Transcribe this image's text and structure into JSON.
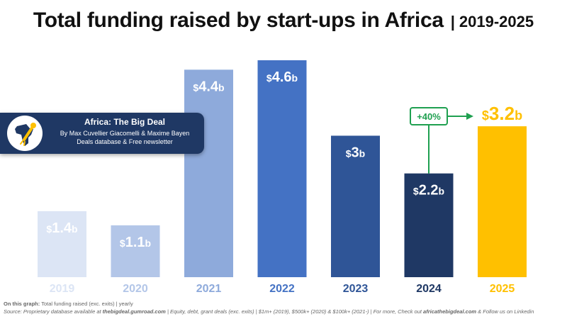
{
  "title": {
    "main": "Total funding raised by start-ups in Africa",
    "separator": "|",
    "period": "2019-2025"
  },
  "chart_data": {
    "type": "bar",
    "title": "Total funding raised by start-ups in Africa | 2019-2025",
    "categories": [
      "2019",
      "2020",
      "2021",
      "2022",
      "2023",
      "2024",
      "2025"
    ],
    "values": [
      1.4,
      1.1,
      4.4,
      4.6,
      3.0,
      2.2,
      3.2
    ],
    "value_labels": [
      {
        "prefix": "$",
        "number": "1.4",
        "suffix": "b"
      },
      {
        "prefix": "$",
        "number": "1.1",
        "suffix": "b"
      },
      {
        "prefix": "$",
        "number": "4.4",
        "suffix": "b"
      },
      {
        "prefix": "$",
        "number": "4.6",
        "suffix": "b"
      },
      {
        "prefix": "$",
        "number": "3",
        "suffix": "b"
      },
      {
        "prefix": "$",
        "number": "2.2",
        "suffix": "b"
      },
      {
        "prefix": "$",
        "number": "3.2",
        "suffix": "b"
      }
    ],
    "bar_colors": [
      "#dce5f5",
      "#b3c6e8",
      "#8eaadb",
      "#4472c4",
      "#2f5597",
      "#1f3864",
      "#ffc000"
    ],
    "label_colors": [
      "#ffffff",
      "#ffffff",
      "#ffffff",
      "#ffffff",
      "#ffffff",
      "#ffffff",
      "#ffc000"
    ],
    "tick_colors": [
      "#dce5f5",
      "#b3c6e8",
      "#8eaadb",
      "#4472c4",
      "#2f5597",
      "#1f3864",
      "#ffc000"
    ],
    "unit": "USD billions",
    "xlabel": "",
    "ylabel": "",
    "ylim": [
      0,
      4.6
    ],
    "grid": false,
    "annotation": {
      "text": "+40%",
      "from": "2024",
      "to": "2025",
      "color": "#1fa050"
    }
  },
  "badge": {
    "name": "Africa: The Big Deal",
    "authors": "By Max Cuvellier Giacomelli & Maxime Bayen",
    "tagline": "Deals database & Free newsletter",
    "icon": "africa-rocket-logo"
  },
  "footer": {
    "line1_label": "On this graph:",
    "line1_text": " Total funding raised (exc. exits) | yearly",
    "line2_a": "Source: Proprietary database available at ",
    "line2_link1": "thebigdeal.gumroad.com",
    "line2_b": " | Equity, debt, grant deals (exc. exits) | $1m+ (2019), $500k+ (2020) & $100k+ (2021-) | For more, Check out ",
    "line2_link2": "africathebigdeal.com",
    "line2_c": " & Follow us on Linkedin"
  }
}
